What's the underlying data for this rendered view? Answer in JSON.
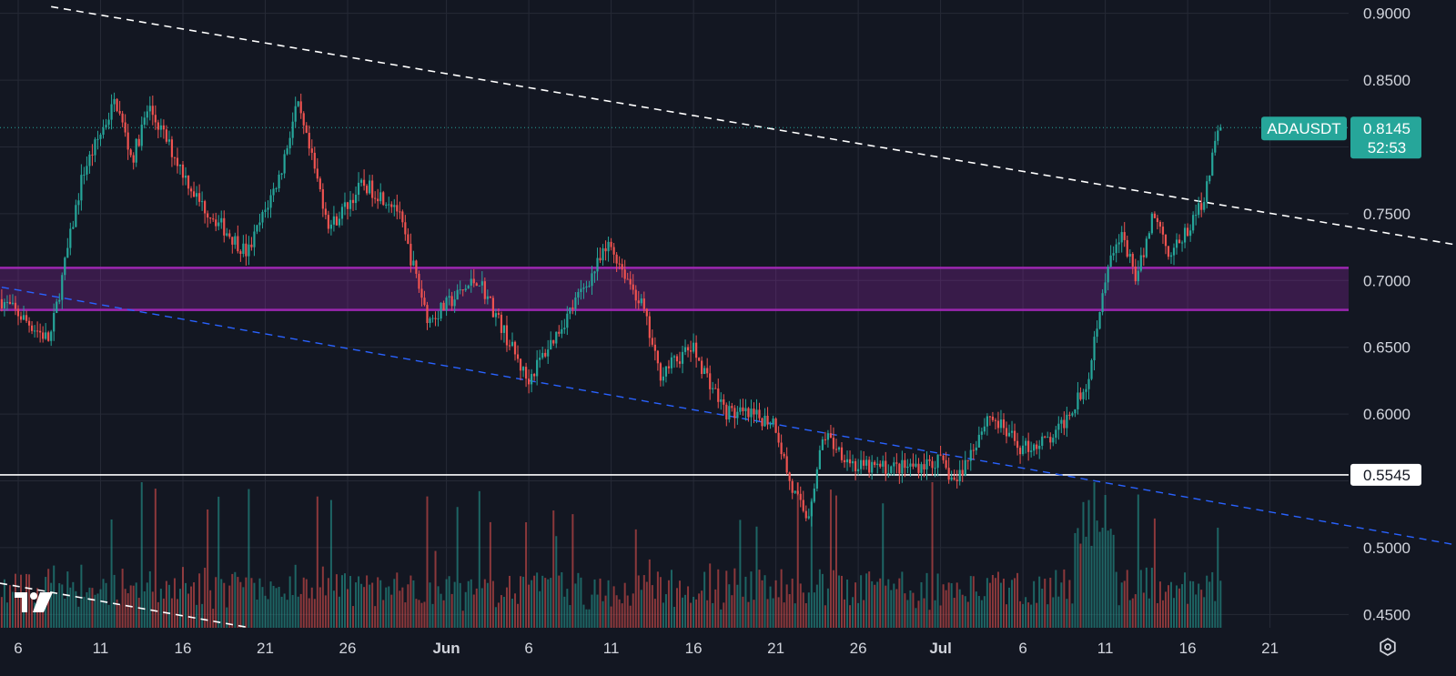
{
  "chart_data": {
    "type": "candlestick",
    "symbol": "ADAUSDT",
    "last_price": "0.8145",
    "countdown": "52:53",
    "level_label": "0.5545",
    "y_ticks": [
      "0.9000",
      "0.8500",
      "0.7500",
      "0.7000",
      "0.6500",
      "0.6000",
      "0.5000",
      "0.4500"
    ],
    "x_ticks": [
      "6",
      "11",
      "16",
      "21",
      "26",
      "Jun",
      "6",
      "11",
      "16",
      "21",
      "26",
      "Jul",
      "6",
      "11",
      "16",
      "21"
    ],
    "ylim": [
      0.44,
      0.91
    ],
    "grid": true,
    "colors": {
      "background": "#131722",
      "up": "#26a69a",
      "down": "#ef5350",
      "grid": "#262a36",
      "zone": "#9c27b0",
      "price_badge": "#26a69a",
      "level_line": "#ffffff",
      "lower_trendline": "#2962ff"
    },
    "horizontal_level": 0.5545,
    "resistance_zone": [
      0.678,
      0.7095
    ],
    "upper_trendline": {
      "from": [
        "May 8",
        0.905
      ],
      "to": [
        "Jul 25",
        0.742
      ]
    },
    "lower_trendline": {
      "from": [
        "May 5",
        0.695
      ],
      "to": [
        "Jul 25",
        0.518
      ]
    },
    "key_prices": [
      {
        "date": "May 5",
        "close": 0.686
      },
      {
        "date": "May 8",
        "close": 0.655
      },
      {
        "date": "May 10",
        "close": 0.78
      },
      {
        "date": "May 12",
        "close": 0.835
      },
      {
        "date": "May 13",
        "close": 0.79
      },
      {
        "date": "May 14",
        "close": 0.83
      },
      {
        "date": "May 17",
        "close": 0.76
      },
      {
        "date": "May 20",
        "close": 0.72
      },
      {
        "date": "May 22",
        "close": 0.78
      },
      {
        "date": "May 23",
        "close": 0.832
      },
      {
        "date": "May 25",
        "close": 0.74
      },
      {
        "date": "May 27",
        "close": 0.772
      },
      {
        "date": "May 29",
        "close": 0.757
      },
      {
        "date": "May 31",
        "close": 0.67
      },
      {
        "date": "Jun 3",
        "close": 0.702
      },
      {
        "date": "Jun 6",
        "close": 0.625
      },
      {
        "date": "Jun 8",
        "close": 0.665
      },
      {
        "date": "Jun 11",
        "close": 0.727
      },
      {
        "date": "Jun 13",
        "close": 0.68
      },
      {
        "date": "Jun 14",
        "close": 0.63
      },
      {
        "date": "Jun 16",
        "close": 0.65
      },
      {
        "date": "Jun 18",
        "close": 0.602
      },
      {
        "date": "Jun 21",
        "close": 0.595
      },
      {
        "date": "Jun 22",
        "close": 0.545
      },
      {
        "date": "Jun 23",
        "close": 0.522
      },
      {
        "date": "Jun 24",
        "close": 0.585
      },
      {
        "date": "Jun 26",
        "close": 0.56
      },
      {
        "date": "Jun 29",
        "close": 0.56
      },
      {
        "date": "Jul 1",
        "close": 0.565
      },
      {
        "date": "Jul 2",
        "close": 0.548
      },
      {
        "date": "Jul 4",
        "close": 0.6
      },
      {
        "date": "Jul 6",
        "close": 0.574
      },
      {
        "date": "Jul 8",
        "close": 0.582
      },
      {
        "date": "Jul 10",
        "close": 0.625
      },
      {
        "date": "Jul 11",
        "close": 0.7
      },
      {
        "date": "Jul 12",
        "close": 0.735
      },
      {
        "date": "Jul 13",
        "close": 0.7
      },
      {
        "date": "Jul 14",
        "close": 0.752
      },
      {
        "date": "Jul 15",
        "close": 0.72
      },
      {
        "date": "Jul 16",
        "close": 0.735
      },
      {
        "date": "Jul 17",
        "close": 0.76
      },
      {
        "date": "Jul 18",
        "close": 0.8145
      }
    ]
  }
}
